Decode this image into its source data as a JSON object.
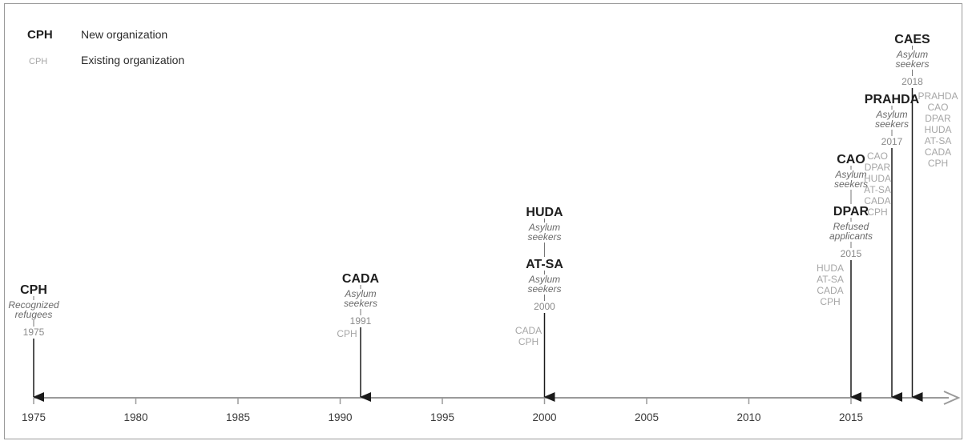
{
  "legend": {
    "new_sample": "CPH",
    "new_label": "New organization",
    "existing_sample": "CPH",
    "existing_label": "Existing organization"
  },
  "axis": {
    "ticks": [
      "1975",
      "1980",
      "1985",
      "1990",
      "1995",
      "2000",
      "2005",
      "2010",
      "2015"
    ]
  },
  "events": [
    {
      "year": 1975,
      "new": [
        {
          "name": "CPH",
          "desc": [
            "Recognized",
            "refugees"
          ]
        }
      ],
      "year_label": "1975",
      "existing": []
    },
    {
      "year": 1991,
      "new": [
        {
          "name": "CADA",
          "desc": [
            "Asylum",
            "seekers"
          ]
        }
      ],
      "year_label": "1991",
      "existing": [
        "CPH"
      ]
    },
    {
      "year": 2000,
      "new": [
        {
          "name": "HUDA",
          "desc": [
            "Asylum",
            "seekers"
          ]
        },
        {
          "name": "AT-SA",
          "desc": [
            "Asylum",
            "seekers"
          ]
        }
      ],
      "year_label": "2000",
      "existing": [
        "CADA",
        "CPH"
      ]
    },
    {
      "year": 2015,
      "new": [
        {
          "name": "CAO",
          "desc": [
            "Asylum",
            "seekers"
          ]
        },
        {
          "name": "DPAR",
          "desc": [
            "Refused",
            "applicants"
          ]
        }
      ],
      "year_label": "2015",
      "existing": [
        "HUDA",
        "AT-SA",
        "CADA",
        "CPH"
      ]
    },
    {
      "year": 2017,
      "new": [
        {
          "name": "PRAHDA",
          "desc": [
            "Asylum",
            "seekers"
          ]
        }
      ],
      "year_label": "2017",
      "existing": [
        "CAO",
        "DPAR",
        "HUDA",
        "AT-SA",
        "CADA",
        "CPH"
      ]
    },
    {
      "year": 2018,
      "new": [
        {
          "name": "CAES",
          "desc": [
            "Asylum",
            "seekers"
          ]
        }
      ],
      "year_label": "2018",
      "existing": [
        "PRAHDA",
        "CAO",
        "DPAR",
        "HUDA",
        "AT-SA",
        "CADA",
        "CPH"
      ]
    }
  ]
}
